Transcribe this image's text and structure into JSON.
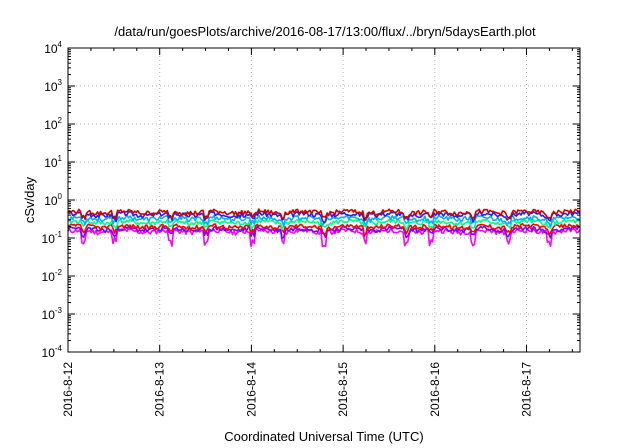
{
  "chart_data": {
    "type": "line",
    "title": "/data/run/goesPlots/archive/2016-08-17/13:00/flux/../bryn/5daysEarth.plot",
    "xlabel": "Coordinated Universal Time (UTC)",
    "ylabel": "cSv/day",
    "yscale": "log",
    "ylim": [
      0.0001,
      10000
    ],
    "xlim": [
      "2016-08-12",
      "2016-08-17 13:00"
    ],
    "grid": true,
    "xticks": [
      "2016-8-12",
      "2016-8-13",
      "2016-8-14",
      "2016-8-15",
      "2016-8-16",
      "2016-8-17"
    ],
    "yticks": [
      {
        "base": "10",
        "exp": "-4"
      },
      {
        "base": "10",
        "exp": "-3"
      },
      {
        "base": "10",
        "exp": "-2"
      },
      {
        "base": "10",
        "exp": "-1"
      },
      {
        "base": "10",
        "exp": "0"
      },
      {
        "base": "10",
        "exp": "1"
      },
      {
        "base": "10",
        "exp": "2"
      },
      {
        "base": "10",
        "exp": "3"
      },
      {
        "base": "10",
        "exp": "4"
      }
    ],
    "series": [
      {
        "color": "#ff00ff",
        "base": 0.15,
        "dip": 0.6,
        "seed": 11
      },
      {
        "color": "#7a00ff",
        "base": 0.17,
        "dip": 0.35,
        "seed": 23
      },
      {
        "color": "#ff0000",
        "base": 0.2,
        "dip": 0.3,
        "seed": 37
      },
      {
        "color": "#00ff80",
        "base": 0.26,
        "dip": 0.3,
        "seed": 41
      },
      {
        "color": "#00b0ff",
        "base": 0.33,
        "dip": 0.3,
        "seed": 53
      },
      {
        "color": "#2020ff",
        "base": 0.42,
        "dip": 0.3,
        "seed": 67
      },
      {
        "color": "#d00000",
        "base": 0.48,
        "dip": 0.3,
        "seed": 79
      }
    ]
  }
}
